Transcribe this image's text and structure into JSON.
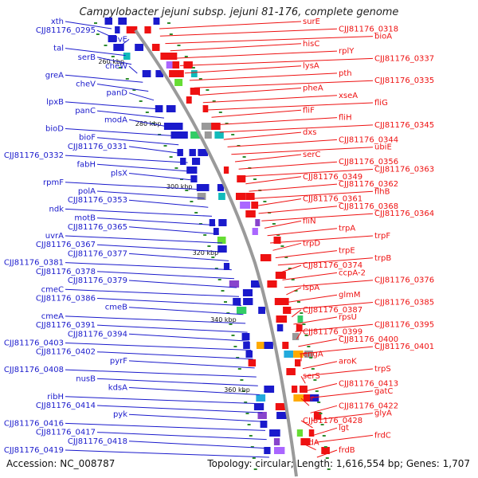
{
  "title": "Campylobacter jejuni subsp. jejuni 81-176, complete genome",
  "footer": {
    "accession": "Accession: NC_008787",
    "stats": "Topology: circular; Length: 1,616,554 bp; Genes: 1,707"
  },
  "colors": {
    "left_genes": "#1a1acc",
    "right_genes": "#ee1111",
    "backbone": "#9a9a9a",
    "tick": "#2e8b2e"
  },
  "scale": {
    "unit": "kbp",
    "labels": [
      "260 kbp",
      "280 kbp",
      "300 kbp",
      "320 kbp",
      "340 kbp",
      "360 kbp"
    ]
  },
  "left_labels": [
    "xth",
    "CJJ81176_0295",
    "ilvE",
    "tal",
    "serB",
    "cheW",
    "greA",
    "cheV",
    "panD",
    "lpxB",
    "panC",
    "modA",
    "bioD",
    "bioF",
    "CJJ81176_0331",
    "CJJ81176_0332",
    "fabH",
    "plsX",
    "rpmF",
    "polA",
    "CJJ81176_0353",
    "ndk",
    "motB",
    "CJJ81176_0365",
    "uvrA",
    "CJJ81176_0367",
    "CJJ81176_0377",
    "CJJ81176_0381",
    "CJJ81176_0378",
    "CJJ81176_0379",
    "cmeC",
    "CJJ81176_0386",
    "cmeB",
    "cmeA",
    "CJJ81176_0391",
    "CJJ81176_0394",
    "CJJ81176_0403",
    "CJJ81176_0402",
    "pyrF",
    "CJJ81176_0408",
    "nusB",
    "kdsA",
    "ribH",
    "CJJ81176_0414",
    "pyk",
    "CJJ81176_0416",
    "CJJ81176_0417",
    "CJJ81176_0418",
    "CJJ81176_0419"
  ],
  "right_labels": [
    "surE",
    "CJJ81176_0318",
    "bioA",
    "hisC",
    "rplY",
    "CJJ81176_0337",
    "lysA",
    "pth",
    "CJJ81176_0335",
    "pheA",
    "xseA",
    "fliG",
    "fliF",
    "fliH",
    "CJJ81176_0345",
    "dxs",
    "CJJ81176_0344",
    "ubiE",
    "serC",
    "CJJ81176_0356",
    "CJJ81176_0363",
    "CJJ81176_0349",
    "CJJ81176_0362",
    "flhB",
    "CJJ81176_0361",
    "CJJ81176_0368",
    "CJJ81176_0364",
    "fliN",
    "trpA",
    "trpF",
    "trpD",
    "trpE",
    "trpB",
    "CJJ81176_0374",
    "ccpA-2",
    "CJJ81176_0376",
    "lspA",
    "glmM",
    "CJJ81176_0385",
    "CJJ81176_0387",
    "rpsU",
    "CJJ81176_0395",
    "CJJ81176_0399",
    "CJJ81176_0400",
    "CJJ81176_0401",
    "engA",
    "aroK",
    "trpS",
    "serS",
    "CJJ81176_0413",
    "gatC",
    "fur",
    "CJJ81176_0422",
    "glyA",
    "CJJ81176_0428",
    "lgt",
    "frdC",
    "frdA",
    "frdB"
  ]
}
